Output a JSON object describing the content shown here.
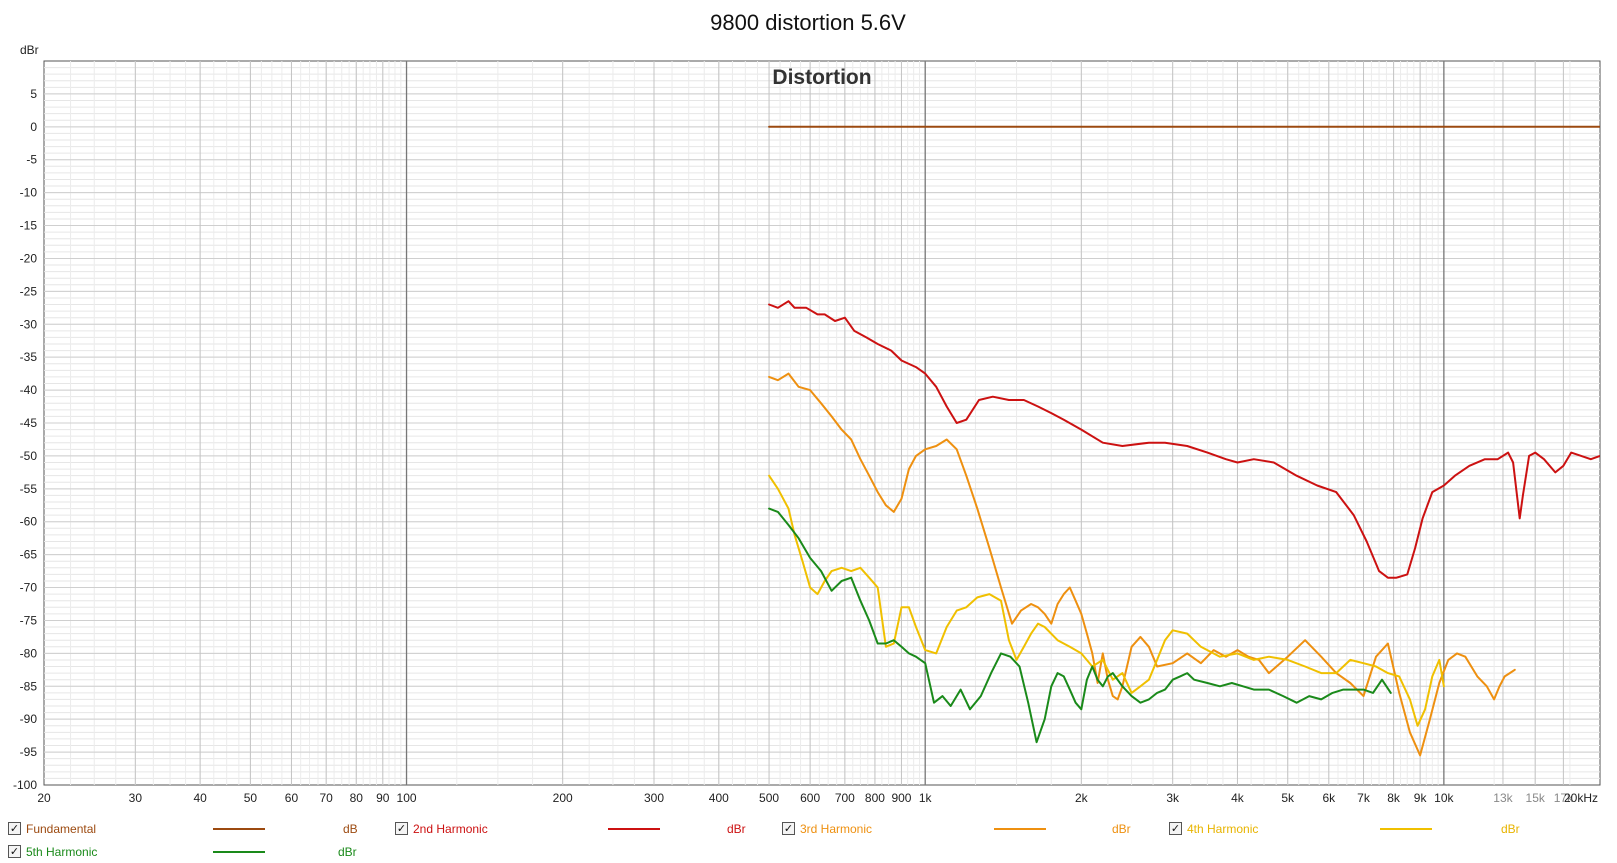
{
  "window_title": "9800 distortion 5.6V",
  "plot_title": "Distortion",
  "y_unit_label": "dBr",
  "chart_data": {
    "type": "line",
    "title": "Distortion",
    "xscale": "log",
    "xlim": [
      20,
      20000
    ],
    "ylim": [
      -100,
      10
    ],
    "grid": true,
    "legend_position": "bottom",
    "y_ticks": [
      5,
      0,
      -5,
      -10,
      -15,
      -20,
      -25,
      -30,
      -35,
      -40,
      -45,
      -50,
      -55,
      -60,
      -65,
      -70,
      -75,
      -80,
      -85,
      -90,
      -95,
      -100
    ],
    "y_tick_labels": [
      "5",
      "0",
      "-5",
      "-10",
      "-15",
      "-20",
      "-25",
      "-30",
      "-35",
      "-40",
      "-45",
      "-50",
      "-55",
      "-60",
      "-65",
      "-70",
      "-75",
      "-80",
      "-85",
      "-90",
      "-95",
      "-100"
    ],
    "x_ticks": [
      20,
      30,
      40,
      50,
      60,
      70,
      80,
      90,
      100,
      200,
      300,
      400,
      500,
      600,
      700,
      800,
      900,
      1000,
      2000,
      3000,
      4000,
      5000,
      6000,
      7000,
      8000,
      9000,
      10000,
      13000,
      15000,
      17000,
      20000
    ],
    "x_tick_labels": [
      "20",
      "30",
      "40",
      "50",
      "60",
      "70",
      "80",
      "90",
      "100",
      "200",
      "300",
      "400",
      "500",
      "600",
      "700",
      "800",
      "900",
      "1k",
      "2k",
      "3k",
      "4k",
      "5k",
      "6k",
      "7k",
      "8k",
      "9k",
      "10k",
      "13k",
      "15k",
      "17k",
      "20kHz"
    ],
    "series": [
      {
        "name": "Fundamental",
        "unit": "dB",
        "color": "#9c4a10",
        "x": [
          500,
          20000
        ],
        "y": [
          0,
          0
        ]
      },
      {
        "name": "2nd Harmonic",
        "unit": "dBr",
        "color": "#cc1111",
        "x": [
          500,
          520,
          545,
          560,
          590,
          620,
          640,
          670,
          700,
          730,
          770,
          810,
          860,
          900,
          960,
          1000,
          1050,
          1100,
          1150,
          1200,
          1270,
          1350,
          1450,
          1550,
          1650,
          1750,
          1850,
          2000,
          2200,
          2400,
          2700,
          2900,
          3200,
          3500,
          3800,
          4000,
          4300,
          4700,
          5200,
          5700,
          6200,
          6700,
          7100,
          7500,
          7800,
          8100,
          8500,
          8800,
          9100,
          9500,
          10000,
          10500,
          11200,
          12000,
          12700,
          13300,
          13600,
          14000,
          14200,
          14600,
          15000,
          15600,
          16400,
          17000,
          17600,
          18400,
          19200,
          20000
        ],
        "y": [
          -27,
          -27.5,
          -26.5,
          -27.5,
          -27.5,
          -28.5,
          -28.5,
          -29.5,
          -29,
          -31,
          -32,
          -33,
          -34,
          -35.5,
          -36.5,
          -37.5,
          -39.5,
          -42.5,
          -45,
          -44.5,
          -41.5,
          -41,
          -41.5,
          -41.5,
          -42.5,
          -43.5,
          -44.5,
          -46,
          -48,
          -48.5,
          -48,
          -48,
          -48.5,
          -49.5,
          -50.5,
          -51,
          -50.5,
          -51,
          -53,
          -54.5,
          -55.5,
          -59,
          -63,
          -67.5,
          -68.5,
          -68.5,
          -68,
          -64,
          -59.5,
          -55.5,
          -54.5,
          -53,
          -51.5,
          -50.5,
          -50.5,
          -49.5,
          -51,
          -59.5,
          -56,
          -50,
          -49.5,
          -50.5,
          -52.5,
          -51.5,
          -49.5,
          -50,
          -50.5,
          -50
        ]
      },
      {
        "name": "3rd Harmonic",
        "unit": "dBr",
        "color": "#ee9010",
        "x": [
          500,
          520,
          545,
          570,
          600,
          630,
          660,
          690,
          720,
          750,
          780,
          810,
          840,
          870,
          900,
          930,
          960,
          1000,
          1050,
          1100,
          1150,
          1200,
          1260,
          1330,
          1400,
          1470,
          1530,
          1600,
          1650,
          1700,
          1750,
          1800,
          1850,
          1900,
          1950,
          2000,
          2050,
          2100,
          2150,
          2200,
          2250,
          2300,
          2350,
          2400,
          2450,
          2500,
          2600,
          2700,
          2800,
          3000,
          3200,
          3400,
          3600,
          3800,
          4000,
          4200,
          4400,
          4600,
          5000,
          5400,
          5800,
          6200,
          6600,
          7000,
          7400,
          7800,
          8200,
          8600,
          9000,
          9400,
          9800,
          10200,
          10600,
          11000,
          11600,
          12100,
          12500,
          12800,
          13100,
          13400,
          13700
        ],
        "y": [
          -38,
          -38.5,
          -37.5,
          -39.5,
          -40,
          -42,
          -44,
          -46,
          -47.5,
          -50.5,
          -53,
          -55.5,
          -57.5,
          -58.5,
          -56.5,
          -52,
          -50,
          -49,
          -48.5,
          -47.5,
          -49,
          -53,
          -58,
          -64,
          -70,
          -75.5,
          -73.5,
          -72.5,
          -73,
          -74,
          -75.5,
          -72.5,
          -71,
          -70,
          -72,
          -74,
          -77,
          -80,
          -84.5,
          -80,
          -84,
          -86.5,
          -87,
          -85,
          -82,
          -79,
          -77.5,
          -79,
          -82,
          -81.5,
          -80,
          -81.5,
          -79.5,
          -80.5,
          -79.5,
          -80.5,
          -81,
          -83,
          -80.5,
          -78,
          -80.5,
          -83,
          -84.5,
          -86.5,
          -80.5,
          -78.5,
          -86,
          -92,
          -95.5,
          -90,
          -84.5,
          -81,
          -80,
          -80.5,
          -83.5,
          -85,
          -87,
          -85,
          -83.5,
          -83,
          -82.5
        ]
      },
      {
        "name": "4th Harmonic",
        "unit": "dBr",
        "color": "#f0c000",
        "x": [
          500,
          520,
          545,
          560,
          580,
          600,
          620,
          640,
          660,
          690,
          720,
          750,
          780,
          810,
          840,
          870,
          900,
          930,
          960,
          1000,
          1050,
          1100,
          1150,
          1200,
          1260,
          1330,
          1400,
          1450,
          1500,
          1550,
          1600,
          1650,
          1700,
          1800,
          1900,
          2000,
          2100,
          2200,
          2300,
          2400,
          2500,
          2600,
          2700,
          2800,
          2900,
          3000,
          3200,
          3400,
          3700,
          4000,
          4300,
          4600,
          5000,
          5400,
          5800,
          6200,
          6600,
          7000,
          7400,
          7800,
          8200,
          8600,
          8900,
          9200,
          9500,
          9800,
          10000
        ],
        "y": [
          -53,
          -55,
          -58,
          -62,
          -66,
          -70,
          -71,
          -69,
          -67.5,
          -67,
          -67.5,
          -67,
          -68.5,
          -70,
          -79,
          -78.5,
          -73,
          -73,
          -76,
          -79.5,
          -80,
          -76,
          -73.5,
          -73,
          -71.5,
          -71,
          -72,
          -78,
          -81,
          -79,
          -77,
          -75.5,
          -76,
          -78,
          -79,
          -80,
          -82,
          -81,
          -84,
          -83,
          -86,
          -85,
          -84,
          -81,
          -78,
          -76.5,
          -77,
          -79,
          -80.5,
          -80,
          -81,
          -80.5,
          -81,
          -82,
          -83,
          -83,
          -81,
          -81.5,
          -82,
          -83,
          -83.5,
          -87,
          -91,
          -88.5,
          -83.5,
          -81,
          -85
        ]
      },
      {
        "name": "5th Harmonic",
        "unit": "dBr",
        "color": "#1a8a1a",
        "x": [
          500,
          520,
          545,
          570,
          600,
          630,
          660,
          690,
          720,
          750,
          780,
          810,
          840,
          870,
          900,
          930,
          960,
          1000,
          1040,
          1080,
          1120,
          1170,
          1220,
          1280,
          1340,
          1400,
          1460,
          1520,
          1580,
          1640,
          1700,
          1750,
          1800,
          1850,
          1900,
          1950,
          2000,
          2050,
          2100,
          2150,
          2200,
          2250,
          2300,
          2400,
          2500,
          2600,
          2700,
          2800,
          2900,
          3000,
          3100,
          3200,
          3300,
          3500,
          3700,
          3900,
          4100,
          4300,
          4600,
          4900,
          5200,
          5500,
          5800,
          6100,
          6400,
          6700,
          7000,
          7300,
          7600,
          7900
        ],
        "y": [
          -58,
          -58.5,
          -60.5,
          -62.5,
          -65.5,
          -67.5,
          -70.5,
          -69,
          -68.5,
          -72,
          -75,
          -78.5,
          -78.5,
          -78,
          -79,
          -80,
          -80.5,
          -81.5,
          -87.5,
          -86.5,
          -88,
          -85.5,
          -88.5,
          -86.5,
          -83,
          -80,
          -80.5,
          -82,
          -87.5,
          -93.5,
          -90,
          -85,
          -83,
          -83.5,
          -85.5,
          -87.5,
          -88.5,
          -84,
          -82,
          -84,
          -85,
          -83.5,
          -83,
          -85,
          -86.5,
          -87.5,
          -87,
          -86,
          -85.5,
          -84,
          -83.5,
          -83,
          -84,
          -84.5,
          -85,
          -84.5,
          -85,
          -85.5,
          -85.5,
          -86.5,
          -87.5,
          -86.5,
          -87,
          -86,
          -85.5,
          -85.5,
          -85.5,
          -86,
          -84,
          -86
        ]
      }
    ]
  }
}
